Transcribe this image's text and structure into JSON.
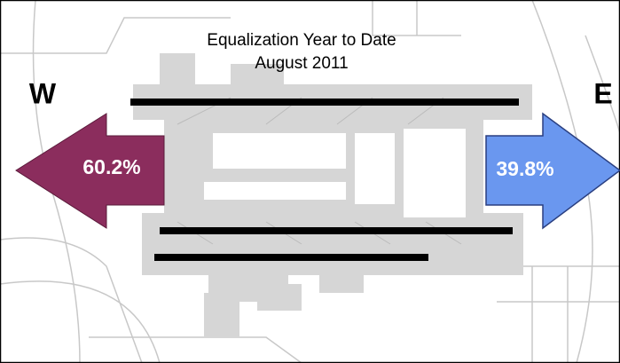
{
  "title": {
    "line1": "Equalization Year to Date",
    "line2": "August 2011"
  },
  "west": {
    "label": "W",
    "share": "60.2%"
  },
  "east": {
    "label": "E",
    "share": "39.8%"
  }
}
